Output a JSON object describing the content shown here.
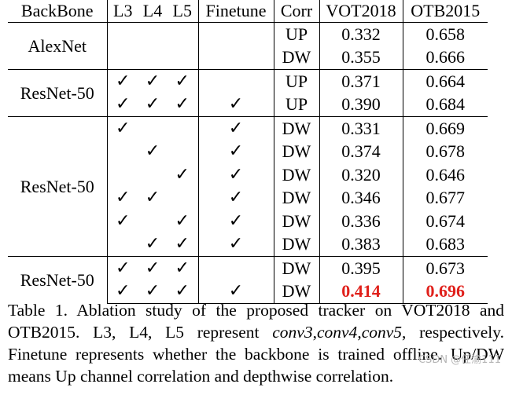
{
  "table": {
    "headers": [
      "BackBone",
      "L3",
      "L4",
      "L5",
      "Finetune",
      "Corr",
      "VOT2018",
      "OTB2015"
    ],
    "check": "✓",
    "groups": [
      {
        "backbone": "AlexNet",
        "rows": [
          {
            "l3": false,
            "l4": false,
            "l5": false,
            "ft": false,
            "corr": "UP",
            "vot": "0.332",
            "otb": "0.658"
          },
          {
            "l3": false,
            "l4": false,
            "l5": false,
            "ft": false,
            "corr": "DW",
            "vot": "0.355",
            "otb": "0.666"
          }
        ]
      },
      {
        "backbone": "ResNet-50",
        "rows": [
          {
            "l3": true,
            "l4": true,
            "l5": true,
            "ft": false,
            "corr": "UP",
            "vot": "0.371",
            "otb": "0.664"
          },
          {
            "l3": true,
            "l4": true,
            "l5": true,
            "ft": true,
            "corr": "UP",
            "vot": "0.390",
            "otb": "0.684"
          }
        ]
      },
      {
        "backbone": "ResNet-50",
        "rows": [
          {
            "l3": true,
            "l4": false,
            "l5": false,
            "ft": true,
            "corr": "DW",
            "vot": "0.331",
            "otb": "0.669"
          },
          {
            "l3": false,
            "l4": true,
            "l5": false,
            "ft": true,
            "corr": "DW",
            "vot": "0.374",
            "otb": "0.678"
          },
          {
            "l3": false,
            "l4": false,
            "l5": true,
            "ft": true,
            "corr": "DW",
            "vot": "0.320",
            "otb": "0.646"
          },
          {
            "l3": true,
            "l4": true,
            "l5": false,
            "ft": true,
            "corr": "DW",
            "vot": "0.346",
            "otb": "0.677"
          },
          {
            "l3": true,
            "l4": false,
            "l5": true,
            "ft": true,
            "corr": "DW",
            "vot": "0.336",
            "otb": "0.674"
          },
          {
            "l3": false,
            "l4": true,
            "l5": true,
            "ft": true,
            "corr": "DW",
            "vot": "0.383",
            "otb": "0.683"
          }
        ]
      },
      {
        "backbone": "ResNet-50",
        "rows": [
          {
            "l3": true,
            "l4": true,
            "l5": true,
            "ft": false,
            "corr": "DW",
            "vot": "0.395",
            "otb": "0.673"
          },
          {
            "l3": true,
            "l4": true,
            "l5": true,
            "ft": true,
            "corr": "DW",
            "vot": "0.414",
            "otb": "0.696",
            "best": true
          }
        ]
      }
    ]
  },
  "caption": {
    "p1": "Table 1. Ablation study of the proposed tracker on VOT2018 and OTB2015. L3, L4, L5 represent ",
    "conv3": "conv3",
    "sep1": ",",
    "conv4": "conv4",
    "sep2": ",",
    "conv5": "conv5",
    "p2": ", respectively. Finetune represents whether the backbone is trained offline. Up/DW means Up channel correlation and depthwise correlation."
  },
  "watermark": "CSDN @任渝111",
  "colors": {
    "best": "#e0201b",
    "watermark": "#b5b5b5"
  }
}
